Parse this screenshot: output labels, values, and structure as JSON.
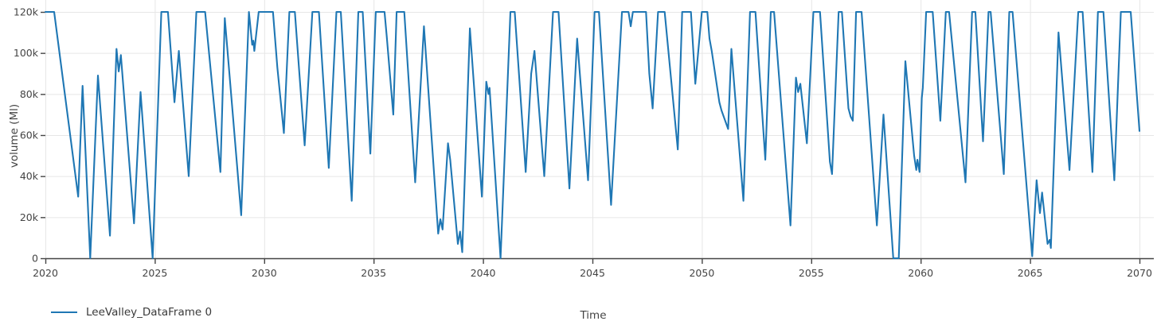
{
  "chart": {
    "background": "#ffffff",
    "grid_color": "#e6e6e6",
    "axis_line_color": "#444444",
    "tick_label_color": "#444444",
    "axis_title_color": "#444444",
    "legend_text_color": "#3a3a3a"
  },
  "chart_data": {
    "type": "line",
    "title": "",
    "xlabel": "Time",
    "ylabel": "volume (Ml)",
    "xlim": [
      2020,
      2070.8
    ],
    "ylim": [
      0,
      126000
    ],
    "grid": true,
    "legend_position": "bottom-left",
    "x_ticks": [
      {
        "value": 2020,
        "label": "2020"
      },
      {
        "value": 2025,
        "label": "2025"
      },
      {
        "value": 2030,
        "label": "2030"
      },
      {
        "value": 2035,
        "label": "2035"
      },
      {
        "value": 2040,
        "label": "2040"
      },
      {
        "value": 2045,
        "label": "2045"
      },
      {
        "value": 2050,
        "label": "2050"
      },
      {
        "value": 2055,
        "label": "2055"
      },
      {
        "value": 2060,
        "label": "2060"
      },
      {
        "value": 2065,
        "label": "2065"
      },
      {
        "value": 2070,
        "label": "2070"
      }
    ],
    "y_ticks": [
      {
        "value": 0,
        "label": "0"
      },
      {
        "value": 20000,
        "label": "20k"
      },
      {
        "value": 40000,
        "label": "40k"
      },
      {
        "value": 60000,
        "label": "60k"
      },
      {
        "value": 80000,
        "label": "80k"
      },
      {
        "value": 100000,
        "label": "100k"
      },
      {
        "value": 120000,
        "label": "120k"
      }
    ],
    "series": [
      {
        "name": "LeeValley_DataFrame 0",
        "color": "#1f77b4",
        "points": [
          [
            2020.0,
            120000
          ],
          [
            2020.4,
            120000
          ],
          [
            2021.5,
            30000
          ],
          [
            2021.7,
            84000
          ],
          [
            2022.05,
            0
          ],
          [
            2022.4,
            89000
          ],
          [
            2022.95,
            11000
          ],
          [
            2023.25,
            102000
          ],
          [
            2023.35,
            91000
          ],
          [
            2023.45,
            99000
          ],
          [
            2024.05,
            17000
          ],
          [
            2024.35,
            81000
          ],
          [
            2024.9,
            0
          ],
          [
            2025.3,
            120000
          ],
          [
            2025.6,
            120000
          ],
          [
            2025.9,
            76000
          ],
          [
            2026.1,
            101000
          ],
          [
            2026.55,
            40000
          ],
          [
            2026.9,
            120000
          ],
          [
            2027.3,
            120000
          ],
          [
            2028.0,
            42000
          ],
          [
            2028.2,
            117000
          ],
          [
            2028.95,
            21000
          ],
          [
            2029.3,
            120000
          ],
          [
            2029.45,
            104000
          ],
          [
            2029.5,
            106000
          ],
          [
            2029.55,
            101000
          ],
          [
            2029.75,
            120000
          ],
          [
            2030.4,
            120000
          ],
          [
            2030.6,
            93000
          ],
          [
            2030.9,
            61000
          ],
          [
            2031.15,
            120000
          ],
          [
            2031.4,
            120000
          ],
          [
            2031.85,
            55000
          ],
          [
            2032.2,
            120000
          ],
          [
            2032.5,
            120000
          ],
          [
            2032.95,
            44000
          ],
          [
            2033.3,
            120000
          ],
          [
            2033.5,
            120000
          ],
          [
            2034.0,
            28000
          ],
          [
            2034.3,
            120000
          ],
          [
            2034.5,
            120000
          ],
          [
            2034.85,
            51000
          ],
          [
            2035.1,
            120000
          ],
          [
            2035.5,
            120000
          ],
          [
            2035.6,
            108000
          ],
          [
            2035.9,
            70000
          ],
          [
            2036.05,
            120000
          ],
          [
            2036.4,
            120000
          ],
          [
            2036.9,
            37000
          ],
          [
            2037.3,
            113000
          ],
          [
            2037.95,
            12000
          ],
          [
            2038.05,
            19000
          ],
          [
            2038.15,
            14000
          ],
          [
            2038.4,
            56000
          ],
          [
            2038.5,
            48000
          ],
          [
            2038.85,
            7000
          ],
          [
            2038.95,
            13000
          ],
          [
            2039.05,
            3000
          ],
          [
            2039.4,
            112000
          ],
          [
            2039.95,
            30000
          ],
          [
            2040.15,
            86000
          ],
          [
            2040.25,
            80000
          ],
          [
            2040.3,
            83000
          ],
          [
            2040.8,
            0
          ],
          [
            2041.25,
            120000
          ],
          [
            2041.45,
            120000
          ],
          [
            2041.95,
            42000
          ],
          [
            2042.2,
            90000
          ],
          [
            2042.35,
            101000
          ],
          [
            2042.8,
            40000
          ],
          [
            2043.2,
            120000
          ],
          [
            2043.45,
            120000
          ],
          [
            2043.95,
            34000
          ],
          [
            2044.3,
            107000
          ],
          [
            2044.8,
            38000
          ],
          [
            2045.1,
            120000
          ],
          [
            2045.3,
            120000
          ],
          [
            2045.85,
            26000
          ],
          [
            2046.35,
            120000
          ],
          [
            2046.65,
            120000
          ],
          [
            2046.75,
            113000
          ],
          [
            2046.85,
            120000
          ],
          [
            2047.45,
            120000
          ],
          [
            2047.6,
            90000
          ],
          [
            2047.75,
            73000
          ],
          [
            2048.0,
            120000
          ],
          [
            2048.3,
            120000
          ],
          [
            2048.9,
            53000
          ],
          [
            2049.1,
            120000
          ],
          [
            2049.5,
            120000
          ],
          [
            2049.7,
            85000
          ],
          [
            2050.0,
            120000
          ],
          [
            2050.25,
            120000
          ],
          [
            2050.35,
            107000
          ],
          [
            2050.45,
            101000
          ],
          [
            2050.8,
            76000
          ],
          [
            2050.9,
            72000
          ],
          [
            2051.2,
            63000
          ],
          [
            2051.35,
            102000
          ],
          [
            2051.9,
            28000
          ],
          [
            2052.2,
            120000
          ],
          [
            2052.45,
            120000
          ],
          [
            2052.9,
            48000
          ],
          [
            2053.15,
            120000
          ],
          [
            2053.3,
            120000
          ],
          [
            2054.05,
            16000
          ],
          [
            2054.3,
            88000
          ],
          [
            2054.4,
            81000
          ],
          [
            2054.5,
            85000
          ],
          [
            2054.8,
            56000
          ],
          [
            2055.1,
            120000
          ],
          [
            2055.4,
            120000
          ],
          [
            2055.85,
            47000
          ],
          [
            2055.95,
            41000
          ],
          [
            2056.25,
            120000
          ],
          [
            2056.4,
            120000
          ],
          [
            2056.7,
            73000
          ],
          [
            2056.8,
            69000
          ],
          [
            2056.9,
            67000
          ],
          [
            2057.05,
            120000
          ],
          [
            2057.3,
            120000
          ],
          [
            2058.0,
            16000
          ],
          [
            2058.3,
            70000
          ],
          [
            2058.75,
            0
          ],
          [
            2059.0,
            0
          ],
          [
            2059.3,
            96000
          ],
          [
            2059.7,
            50000
          ],
          [
            2059.8,
            43000
          ],
          [
            2059.85,
            48000
          ],
          [
            2059.95,
            42000
          ],
          [
            2060.05,
            78000
          ],
          [
            2060.1,
            83000
          ],
          [
            2060.25,
            120000
          ],
          [
            2060.55,
            120000
          ],
          [
            2060.9,
            67000
          ],
          [
            2061.15,
            120000
          ],
          [
            2061.3,
            120000
          ],
          [
            2062.05,
            37000
          ],
          [
            2062.35,
            120000
          ],
          [
            2062.5,
            120000
          ],
          [
            2062.85,
            57000
          ],
          [
            2063.1,
            120000
          ],
          [
            2063.2,
            120000
          ],
          [
            2063.8,
            41000
          ],
          [
            2064.05,
            120000
          ],
          [
            2064.2,
            120000
          ],
          [
            2065.1,
            1000
          ],
          [
            2065.3,
            38000
          ],
          [
            2065.45,
            22000
          ],
          [
            2065.55,
            32000
          ],
          [
            2065.8,
            7000
          ],
          [
            2065.9,
            9000
          ],
          [
            2065.95,
            5000
          ],
          [
            2066.3,
            110000
          ],
          [
            2066.8,
            43000
          ],
          [
            2067.2,
            120000
          ],
          [
            2067.4,
            120000
          ],
          [
            2067.85,
            42000
          ],
          [
            2068.1,
            120000
          ],
          [
            2068.35,
            120000
          ],
          [
            2068.85,
            38000
          ],
          [
            2069.15,
            120000
          ],
          [
            2069.6,
            120000
          ],
          [
            2070.0,
            62000
          ]
        ]
      }
    ]
  }
}
